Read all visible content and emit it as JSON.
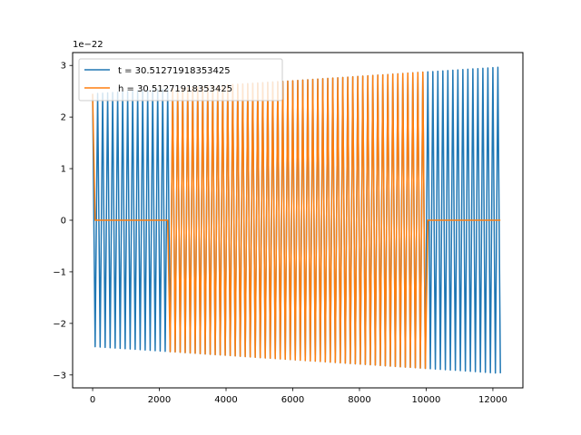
{
  "chart_data": {
    "type": "line",
    "title": "",
    "xlabel": "",
    "ylabel": "",
    "y_offset_label": "1e−22",
    "xlim": [
      -600,
      12900
    ],
    "ylim": [
      -3.25,
      3.25
    ],
    "x_ticks": [
      0,
      2000,
      4000,
      6000,
      8000,
      10000,
      12000
    ],
    "y_ticks": [
      -3,
      -2,
      -1,
      0,
      1,
      2,
      3
    ],
    "x_tick_labels": [
      "0",
      "2000",
      "4000",
      "6000",
      "8000",
      "10000",
      "12000"
    ],
    "y_tick_labels": [
      "−3",
      "−2",
      "−1",
      "0",
      "1",
      "2",
      "3"
    ],
    "grid": false,
    "legend_position": "top-left",
    "series": [
      {
        "name": "t = 30.51271918353425",
        "color": "#1f77b4",
        "signal": {
          "start": 0,
          "end": 12280,
          "period": 150,
          "amplitude_start": 2.45,
          "amplitude_end": 2.97,
          "segments": [
            {
              "from": 0,
              "to": 12280,
              "mode": "oscillate"
            }
          ]
        }
      },
      {
        "name": "h = 30.51271918353425",
        "color": "#ff7f0e",
        "signal": {
          "start": 0,
          "end": 12280,
          "period": 150,
          "amplitude_start": 2.45,
          "amplitude_end": 2.97,
          "segments": [
            {
              "from": 0,
              "to": 60,
              "mode": "oscillate"
            },
            {
              "from": 60,
              "to": 2300,
              "mode": "zero"
            },
            {
              "from": 2300,
              "to": 10020,
              "mode": "oscillate"
            },
            {
              "from": 10020,
              "to": 12280,
              "mode": "zero"
            }
          ]
        }
      }
    ]
  }
}
